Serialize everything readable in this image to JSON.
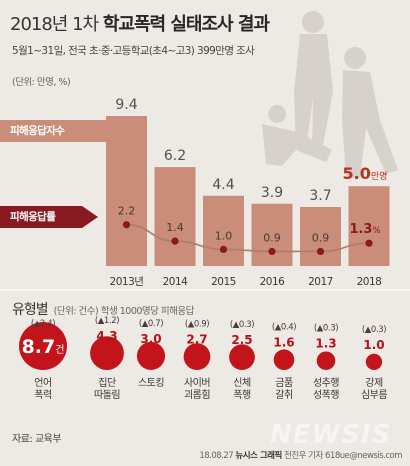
{
  "header": {
    "title_prefix": "2018년 1차 ",
    "title_bold": "학교폭력 실태조사 결과",
    "subtitle": "5월1~31일, 전국 초·중·고등학교(초4~고3) 399만명 조사",
    "unit": "(단위: 만명, %)"
  },
  "legend": {
    "respondents": "피해응답자수",
    "rate": "피해응답률"
  },
  "chart_data": [
    {
      "type": "bar",
      "categories": [
        "2013년",
        "2014",
        "2015",
        "2016",
        "2017",
        "2018"
      ],
      "series": [
        {
          "name": "피해응답자수",
          "values": [
            9.4,
            6.2,
            4.4,
            3.9,
            3.7,
            5.0
          ],
          "labels": [
            "9.4",
            "6.2",
            "4.4",
            "3.9",
            "3.7",
            "5.0"
          ],
          "unit_last": "만명"
        },
        {
          "name": "피해응답률",
          "values": [
            2.2,
            1.4,
            1.0,
            0.9,
            0.9,
            1.3
          ],
          "labels": [
            "2.2",
            "1.4",
            "1.0",
            "0.9",
            "0.9",
            "1.3"
          ],
          "unit_last": "%"
        }
      ],
      "colors": {
        "bar": "#c98d79",
        "bar_last": "#c98d79",
        "rate_point": "#8a1a22",
        "rate_line": "#b07a6d"
      }
    },
    {
      "type": "scatter",
      "title": "유형별",
      "note": "(단위: 건수) 학생 1000명당 피해응답",
      "categories": [
        "언어\n폭력",
        "집단\n따돌림",
        "스토킹",
        "사이버\n괴롭힘",
        "신체\n폭행",
        "금품\n갈취",
        "성추행\n성폭행",
        "강제\n심부름"
      ],
      "values": [
        8.7,
        4.3,
        3.0,
        2.7,
        2.5,
        1.6,
        1.3,
        1.0
      ],
      "changes": [
        "(▲2.4)",
        "(▲1.2)",
        "(▲0.7)",
        "(▲0.9)",
        "(▲0.3)",
        "(▲0.4)",
        "(▲0.3)",
        "(▲0.3)"
      ],
      "first_unit": "건",
      "colors": {
        "bubble": "#c3141c",
        "value_text": "#b5121a"
      }
    }
  ],
  "footer": {
    "source": "자료: 교육부",
    "credit_date": "18.08.27 ",
    "credit_org": "뉴시스 그래픽",
    "credit_rest": " 전진우 기자 618ue@newsis.com",
    "watermark": "NEWSIS"
  }
}
